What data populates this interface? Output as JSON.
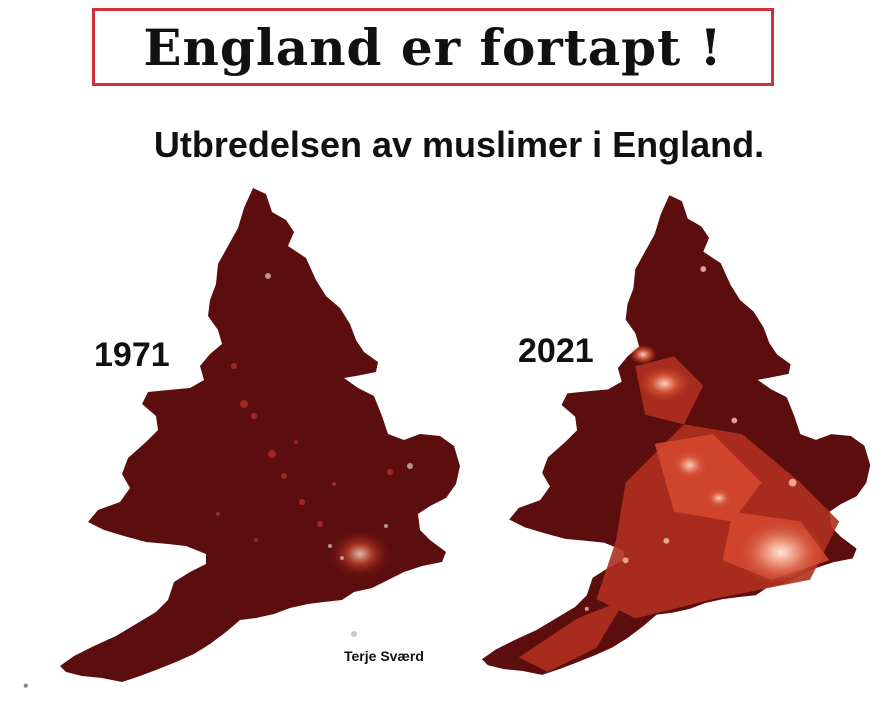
{
  "headline": "England er fortapt !",
  "subtitle": "Utbredelsen av muslimer i England.",
  "maps": [
    {
      "year": "1971",
      "base_color": "#5c0d0e",
      "spot_intensity": 0.2
    },
    {
      "year": "2021",
      "base_color": "#5c0d0e",
      "spot_intensity": 0.9
    }
  ],
  "credit": "Terje Sværd",
  "colors": {
    "frame": "#d32f3a",
    "map_dark": "#5c0d0e",
    "map_mid": "#c2402b",
    "map_light": "#f6c8b3"
  }
}
